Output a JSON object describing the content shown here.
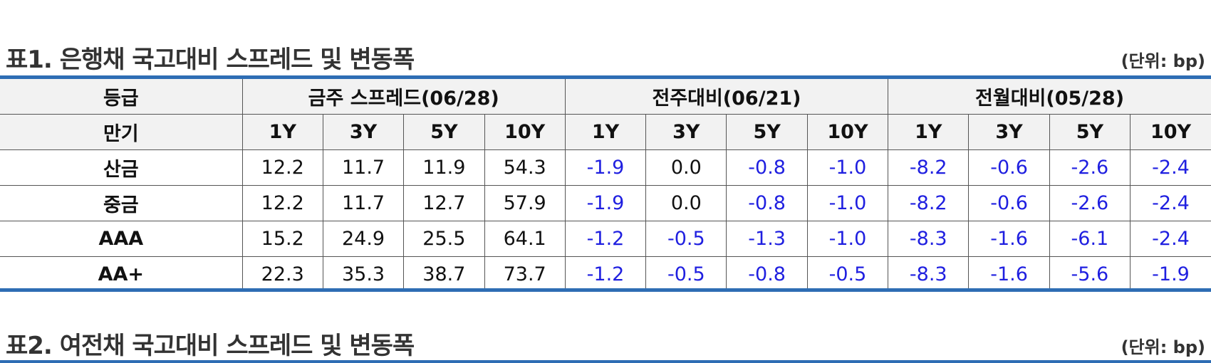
{
  "table1": {
    "title": "표1. 은행채 국고대비 스프레드 및 변동폭",
    "unit": "(단위: bp)",
    "header1": {
      "grade_label": "등급",
      "groups": [
        "금주 스프레드(06/28)",
        "전주대비(06/21)",
        "전월대비(05/28)"
      ]
    },
    "header2": {
      "maturity_label": "만기",
      "tenors": [
        "1Y",
        "3Y",
        "5Y",
        "10Y",
        "1Y",
        "3Y",
        "5Y",
        "10Y",
        "1Y",
        "3Y",
        "5Y",
        "10Y"
      ]
    },
    "rows": [
      {
        "grade": "산금",
        "values": [
          "12.2",
          "11.7",
          "11.9",
          "54.3",
          "-1.9",
          "0.0",
          "-0.8",
          "-1.0",
          "-8.2",
          "-0.6",
          "-2.6",
          "-2.4"
        ]
      },
      {
        "grade": "중금",
        "values": [
          "12.2",
          "11.7",
          "12.7",
          "57.9",
          "-1.9",
          "0.0",
          "-0.8",
          "-1.0",
          "-8.2",
          "-0.6",
          "-2.6",
          "-2.4"
        ]
      },
      {
        "grade": "AAA",
        "values": [
          "15.2",
          "24.9",
          "25.5",
          "64.1",
          "-1.2",
          "-0.5",
          "-1.3",
          "-1.0",
          "-8.3",
          "-1.6",
          "-6.1",
          "-2.4"
        ]
      },
      {
        "grade": "AA+",
        "values": [
          "22.3",
          "35.3",
          "38.7",
          "73.7",
          "-1.2",
          "-0.5",
          "-0.8",
          "-0.5",
          "-8.3",
          "-1.6",
          "-5.6",
          "-1.9"
        ]
      }
    ]
  },
  "table2": {
    "title": "표2. 여전채 국고대비 스프레드 및 변동폭",
    "unit": "(단위: bp)"
  },
  "colors": {
    "accent_rule": "#2e6db4",
    "negative_value": "#1f1fe0",
    "header_bg": "#f2f2f2"
  }
}
